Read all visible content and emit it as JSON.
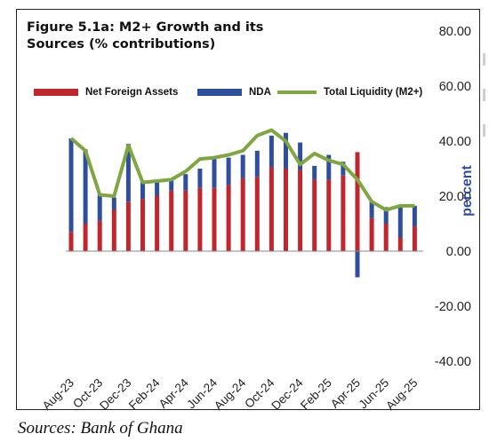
{
  "chart_data": {
    "type": "bar",
    "title": "Figure 5.1a: M2+ Growth and its Sources  (% contributions)",
    "ylabel": "percent",
    "xlabel": "",
    "ylim": [
      -40,
      80
    ],
    "yticks": [
      "80.00",
      "60.00",
      "40.00",
      "20.00",
      "0.00",
      "-20.00",
      "-40.00"
    ],
    "ytick_values": [
      80,
      60,
      40,
      20,
      0,
      -20,
      -40
    ],
    "categories": [
      "Aug-23",
      "Sep-23",
      "Oct-23",
      "Nov-23",
      "Dec-23",
      "Jan-24",
      "Feb-24",
      "Mar-24",
      "Apr-24",
      "May-24",
      "Jun-24",
      "Jul-24",
      "Aug-24",
      "Sep-24",
      "Oct-24",
      "Nov-24",
      "Dec-24",
      "Jan-25",
      "Feb-25",
      "Mar-25",
      "Apr-25",
      "May-25",
      "Jun-25",
      "Jul-25",
      "Aug-25"
    ],
    "x_tick_labels": [
      "Aug-23",
      "Oct-23",
      "Dec-23",
      "Feb-24",
      "Apr-24",
      "Jun-24",
      "Aug-24",
      "Oct-24",
      "Dec-24",
      "Feb-25",
      "Apr-25",
      "Jun-25",
      "Aug-25"
    ],
    "legend_position": "top",
    "series": [
      {
        "name": "Net Foreign Assets",
        "kind": "bar",
        "color": "#c0272d",
        "values": [
          7.0,
          10.0,
          11.0,
          15.0,
          18.0,
          19.0,
          20.0,
          22.0,
          22.0,
          23.0,
          23.0,
          24.0,
          26.5,
          27.0,
          30.5,
          30.0,
          29.5,
          26.0,
          26.0,
          27.5,
          36.0,
          12.0,
          10.0,
          5.0,
          9.0
        ]
      },
      {
        "name": "NDA",
        "kind": "bar",
        "color": "#2f4f9e",
        "values": [
          34.0,
          27.0,
          9.5,
          4.5,
          21.0,
          6.0,
          5.5,
          4.0,
          6.0,
          7.0,
          11.0,
          10.0,
          8.5,
          9.5,
          11.5,
          13.0,
          10.0,
          5.0,
          9.0,
          5.0,
          -9.5,
          6.0,
          6.0,
          11.5,
          7.5
        ]
      },
      {
        "name": "Total  Liquidity (M2+)",
        "kind": "line",
        "color": "#7fa640",
        "values": [
          41.0,
          36.5,
          20.5,
          20.0,
          38.5,
          25.0,
          25.5,
          26.0,
          29.0,
          33.5,
          34.0,
          35.0,
          36.5,
          42.0,
          44.0,
          40.0,
          31.5,
          35.5,
          33.0,
          31.5,
          26.0,
          18.0,
          15.0,
          16.5,
          16.5
        ]
      }
    ]
  },
  "source": "Sources: Bank of Ghana"
}
